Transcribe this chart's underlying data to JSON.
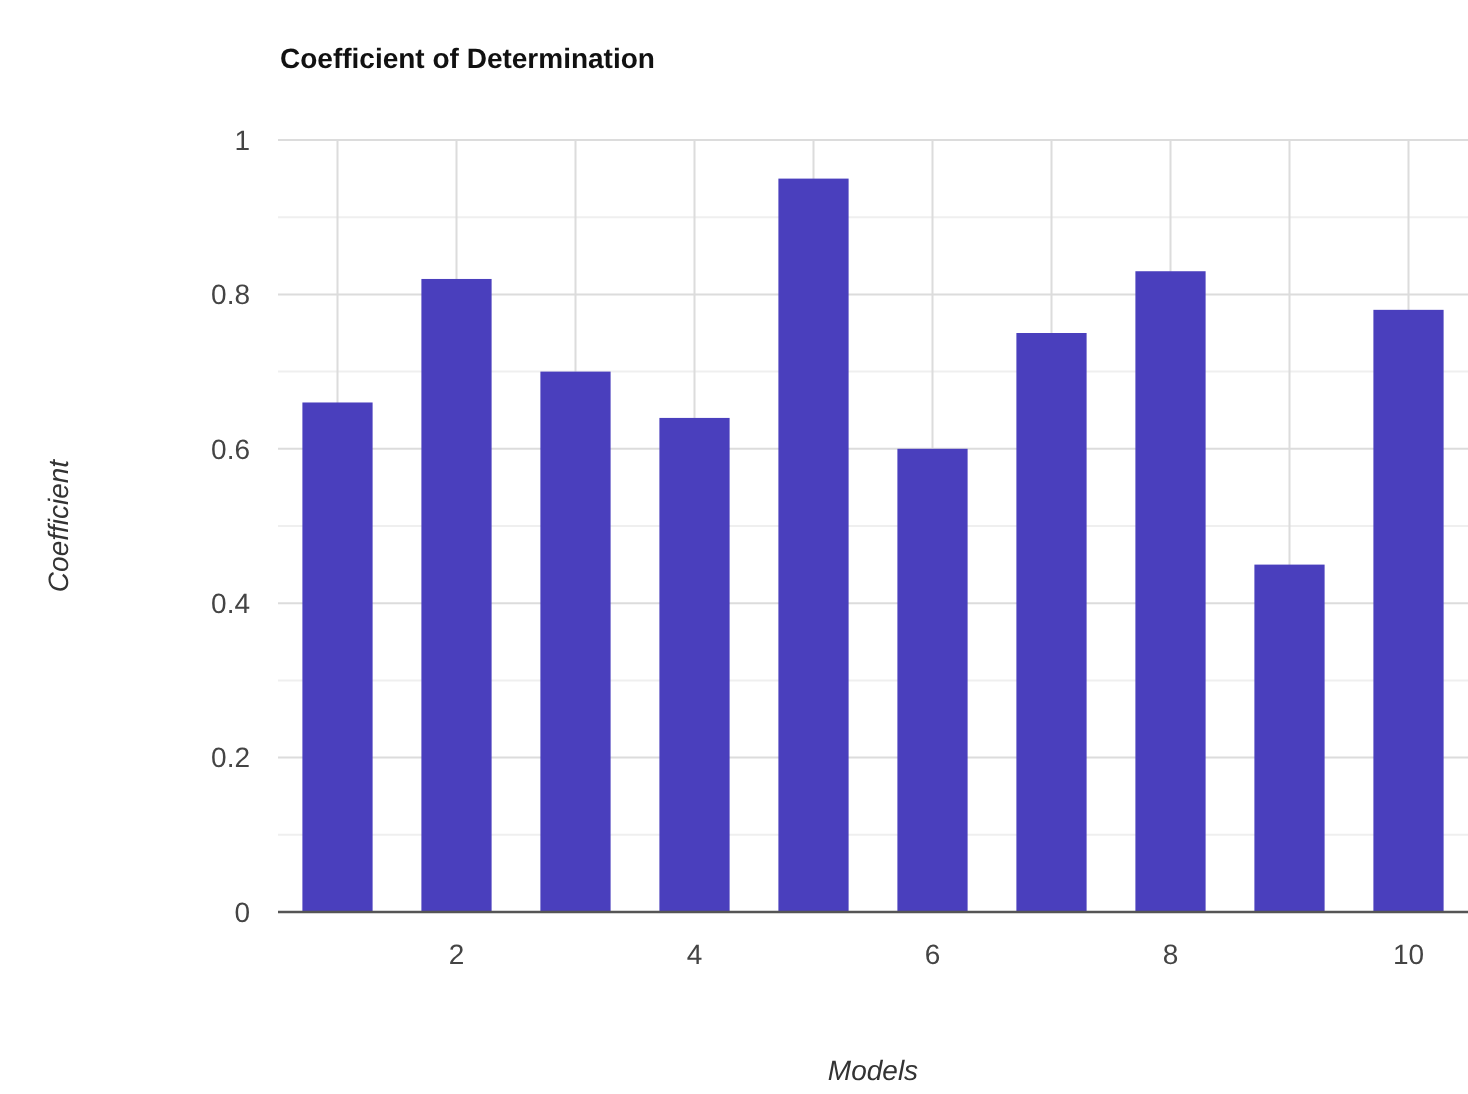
{
  "chart_data": {
    "type": "bar",
    "title": "Coefficient of Determination",
    "xlabel": "Models",
    "ylabel": "Coefficient",
    "x": [
      1,
      2,
      3,
      4,
      5,
      6,
      7,
      8,
      9,
      10
    ],
    "values": [
      0.66,
      0.82,
      0.7,
      0.64,
      0.95,
      0.6,
      0.75,
      0.83,
      0.45,
      0.78
    ],
    "color": "#4a3fbd",
    "xlim": [
      0.5,
      10.5
    ],
    "xticks": [
      {
        "value": 1,
        "label": null
      },
      2,
      {
        "value": 3,
        "label": null
      },
      4,
      {
        "value": 5,
        "label": null
      },
      6,
      {
        "value": 7,
        "label": null
      },
      8,
      {
        "value": 9,
        "label": null
      },
      10
    ],
    "ylim": [
      0,
      1
    ],
    "yticks": [
      0,
      {
        "value": 0.1,
        "label": null
      },
      0.2,
      {
        "value": 0.3,
        "label": null
      },
      0.4,
      {
        "value": 0.5,
        "label": null
      },
      0.6,
      {
        "value": 0.7,
        "label": null
      },
      0.8,
      {
        "value": 0.9,
        "label": null
      },
      1
    ],
    "grid": true
  }
}
